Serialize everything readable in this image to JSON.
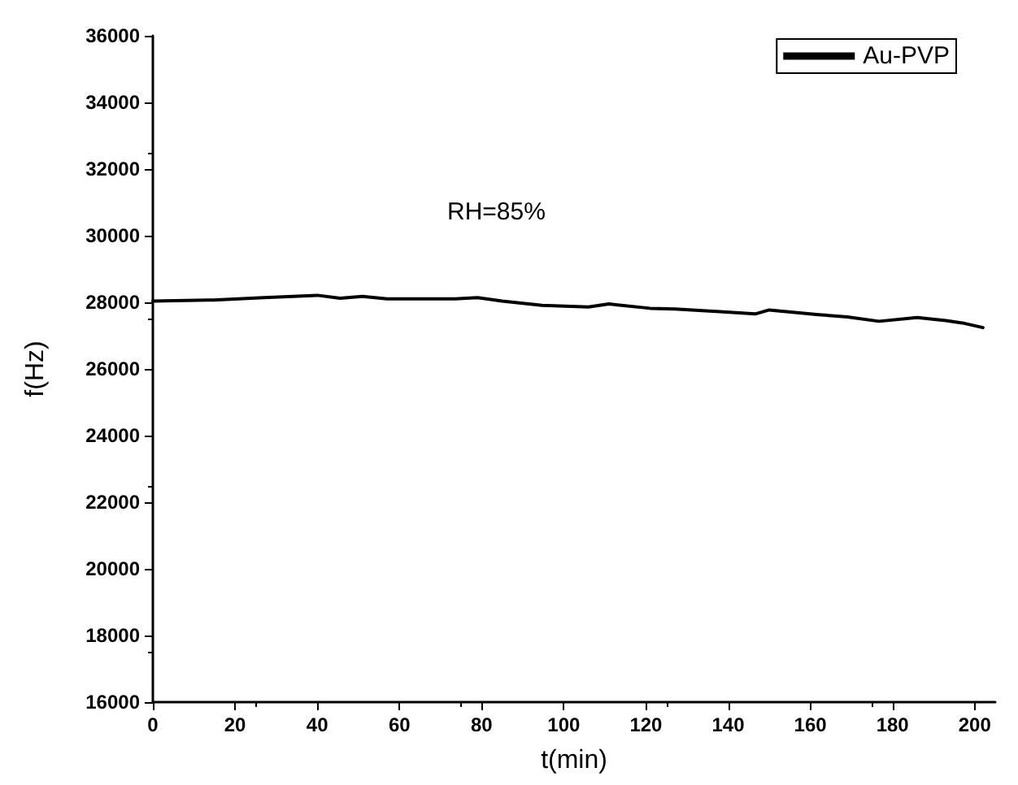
{
  "chart_data": {
    "type": "line",
    "xlabel": "t(min)",
    "ylabel": "f(Hz)",
    "annotations": [
      "RH=85%"
    ],
    "xlim": [
      0,
      205
    ],
    "xticks": [
      0,
      20,
      40,
      60,
      80,
      100,
      120,
      140,
      160,
      180,
      200
    ],
    "ylim": [
      16000,
      36000
    ],
    "yticks": [
      16000,
      18000,
      20000,
      22000,
      24000,
      26000,
      28000,
      30000,
      32000,
      34000,
      36000
    ],
    "grid": false,
    "legend": "top right",
    "marker": "none",
    "line_style": "solid",
    "x": [
      0,
      14.7,
      27,
      40,
      45.6,
      51,
      57,
      73.6,
      79,
      85,
      94.7,
      106,
      111,
      121,
      127,
      138,
      146.6,
      150,
      162,
      169,
      176.7,
      186,
      193,
      197,
      202
    ],
    "series": [
      {
        "name": "Au-PVP",
        "color": "#000000",
        "values": [
          28035,
          28070,
          28140,
          28210,
          28120,
          28175,
          28105,
          28105,
          28140,
          28035,
          27910,
          27860,
          27950,
          27820,
          27800,
          27720,
          27650,
          27770,
          27630,
          27560,
          27430,
          27540,
          27450,
          27380,
          27240
        ]
      }
    ]
  }
}
